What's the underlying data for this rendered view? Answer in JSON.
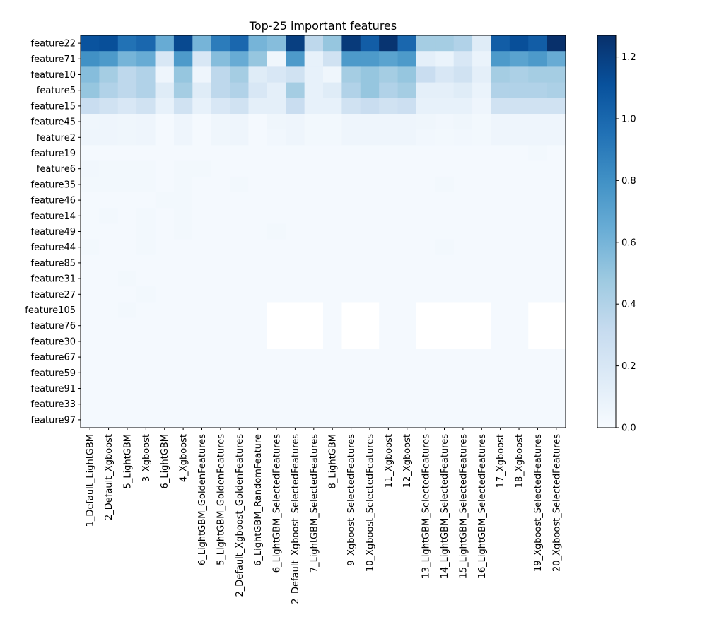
{
  "chart_data": {
    "type": "heatmap",
    "title": "Top-25 important features",
    "xlabel": "",
    "ylabel": "",
    "color_scale": {
      "min": 0.0,
      "max": 1.27,
      "ticks": [
        0.0,
        0.2,
        0.4,
        0.6,
        0.8,
        1.0,
        1.2
      ],
      "tick_labels": [
        "0.0",
        "0.2",
        "0.4",
        "0.6",
        "0.8",
        "1.0",
        "1.2"
      ],
      "colormap": "Blues"
    },
    "rows": [
      "feature22",
      "feature71",
      "feature10",
      "feature5",
      "feature15",
      "feature45",
      "feature2",
      "feature19",
      "feature6",
      "feature35",
      "feature46",
      "feature14",
      "feature49",
      "feature44",
      "feature85",
      "feature31",
      "feature27",
      "feature105",
      "feature76",
      "feature30",
      "feature67",
      "feature59",
      "feature91",
      "feature33",
      "feature97"
    ],
    "columns": [
      "1_Default_LightGBM",
      "2_Default_Xgboost",
      "5_LightGBM",
      "3_Xgboost",
      "6_LightGBM",
      "4_Xgboost",
      "6_LightGBM_GoldenFeatures",
      "5_LightGBM_GoldenFeatures",
      "2_Default_Xgboost_GoldenFeatures",
      "6_LightGBM_RandomFeature",
      "6_LightGBM_SelectedFeatures",
      "2_Default_Xgboost_SelectedFeatures",
      "7_LightGBM_SelectedFeatures",
      "8_LightGBM",
      "9_Xgboost_SelectedFeatures",
      "10_Xgboost_SelectedFeatures",
      "11_Xgboost",
      "12_Xgboost",
      "13_LightGBM_SelectedFeatures",
      "14_LightGBM_SelectedFeatures",
      "15_LightGBM_SelectedFeatures",
      "16_LightGBM_SelectedFeatures",
      "17_Xgboost",
      "18_Xgboost",
      "19_Xgboost_SelectedFeatures",
      "20_Xgboost_SelectedFeatures"
    ],
    "values": [
      [
        1.1,
        1.12,
        0.95,
        1.0,
        0.65,
        1.15,
        0.6,
        0.9,
        1.0,
        0.6,
        0.55,
        1.2,
        0.35,
        0.5,
        1.22,
        1.05,
        1.25,
        1.0,
        0.45,
        0.45,
        0.4,
        0.15,
        1.05,
        1.12,
        1.05,
        1.27
      ],
      [
        0.8,
        0.75,
        0.6,
        0.65,
        0.2,
        0.75,
        0.2,
        0.55,
        0.65,
        0.5,
        0.05,
        0.75,
        0.1,
        0.25,
        0.75,
        0.75,
        0.7,
        0.75,
        0.12,
        0.08,
        0.2,
        0.08,
        0.75,
        0.7,
        0.75,
        0.65
      ],
      [
        0.55,
        0.45,
        0.35,
        0.4,
        0.06,
        0.5,
        0.06,
        0.35,
        0.45,
        0.15,
        0.2,
        0.25,
        0.1,
        0.05,
        0.45,
        0.5,
        0.45,
        0.5,
        0.3,
        0.2,
        0.25,
        0.12,
        0.45,
        0.42,
        0.45,
        0.45
      ],
      [
        0.5,
        0.4,
        0.35,
        0.4,
        0.15,
        0.45,
        0.15,
        0.35,
        0.4,
        0.2,
        0.12,
        0.45,
        0.1,
        0.15,
        0.4,
        0.5,
        0.4,
        0.45,
        0.12,
        0.12,
        0.15,
        0.08,
        0.4,
        0.4,
        0.4,
        0.42
      ],
      [
        0.3,
        0.25,
        0.2,
        0.25,
        0.1,
        0.25,
        0.1,
        0.2,
        0.25,
        0.12,
        0.12,
        0.3,
        0.1,
        0.1,
        0.25,
        0.3,
        0.25,
        0.28,
        0.1,
        0.1,
        0.1,
        0.06,
        0.25,
        0.25,
        0.25,
        0.25
      ],
      [
        0.05,
        0.06,
        0.05,
        0.06,
        0.02,
        0.06,
        0.02,
        0.05,
        0.06,
        0.02,
        0.05,
        0.06,
        0.03,
        0.03,
        0.06,
        0.06,
        0.06,
        0.06,
        0.05,
        0.04,
        0.05,
        0.03,
        0.06,
        0.06,
        0.06,
        0.06
      ],
      [
        0.06,
        0.06,
        0.05,
        0.06,
        0.02,
        0.06,
        0.02,
        0.05,
        0.06,
        0.02,
        0.04,
        0.06,
        0.03,
        0.03,
        0.06,
        0.06,
        0.06,
        0.06,
        0.04,
        0.03,
        0.04,
        0.03,
        0.06,
        0.06,
        0.06,
        0.06
      ],
      [
        0.02,
        0.02,
        0.02,
        0.02,
        0.02,
        0.02,
        0.02,
        0.02,
        0.02,
        0.02,
        0.02,
        0.02,
        0.02,
        0.02,
        0.02,
        0.02,
        0.02,
        0.02,
        0.02,
        0.02,
        0.02,
        0.02,
        0.02,
        0.02,
        0.03,
        0.02
      ],
      [
        0.04,
        0.03,
        0.03,
        0.03,
        0.02,
        0.03,
        0.03,
        0.02,
        0.02,
        0.02,
        0.02,
        0.02,
        0.02,
        0.02,
        0.02,
        0.02,
        0.02,
        0.02,
        0.02,
        0.02,
        0.02,
        0.02,
        0.02,
        0.02,
        0.02,
        0.02
      ],
      [
        0.03,
        0.03,
        0.03,
        0.03,
        0.02,
        0.03,
        0.02,
        0.02,
        0.03,
        0.02,
        0.02,
        0.02,
        0.02,
        0.02,
        0.02,
        0.02,
        0.02,
        0.02,
        0.02,
        0.03,
        0.02,
        0.02,
        0.02,
        0.02,
        0.02,
        0.02
      ],
      [
        0.02,
        0.02,
        0.02,
        0.02,
        0.03,
        0.03,
        0.02,
        0.02,
        0.02,
        0.02,
        0.02,
        0.02,
        0.02,
        0.02,
        0.02,
        0.02,
        0.02,
        0.02,
        0.02,
        0.02,
        0.02,
        0.02,
        0.02,
        0.02,
        0.02,
        0.02
      ],
      [
        0.02,
        0.03,
        0.02,
        0.03,
        0.02,
        0.03,
        0.02,
        0.02,
        0.02,
        0.02,
        0.02,
        0.02,
        0.02,
        0.02,
        0.02,
        0.02,
        0.02,
        0.02,
        0.02,
        0.02,
        0.02,
        0.02,
        0.02,
        0.02,
        0.02,
        0.02
      ],
      [
        0.02,
        0.02,
        0.02,
        0.03,
        0.02,
        0.03,
        0.02,
        0.02,
        0.02,
        0.02,
        0.03,
        0.02,
        0.02,
        0.02,
        0.02,
        0.02,
        0.02,
        0.02,
        0.02,
        0.02,
        0.02,
        0.02,
        0.02,
        0.02,
        0.02,
        0.02
      ],
      [
        0.03,
        0.02,
        0.02,
        0.03,
        0.02,
        0.02,
        0.02,
        0.02,
        0.02,
        0.02,
        0.02,
        0.02,
        0.02,
        0.02,
        0.02,
        0.02,
        0.02,
        0.02,
        0.02,
        0.03,
        0.02,
        0.02,
        0.02,
        0.02,
        0.02,
        0.02
      ],
      [
        0.02,
        0.02,
        0.02,
        0.02,
        0.02,
        0.02,
        0.02,
        0.02,
        0.02,
        0.02,
        0.02,
        0.02,
        0.02,
        0.02,
        0.02,
        0.02,
        0.02,
        0.02,
        0.02,
        0.02,
        0.02,
        0.02,
        0.02,
        0.02,
        0.02,
        0.02
      ],
      [
        0.02,
        0.02,
        0.03,
        0.02,
        0.02,
        0.02,
        0.02,
        0.02,
        0.02,
        0.02,
        0.02,
        0.02,
        0.02,
        0.02,
        0.02,
        0.02,
        0.02,
        0.02,
        0.02,
        0.02,
        0.02,
        0.02,
        0.02,
        0.02,
        0.02,
        0.02
      ],
      [
        0.02,
        0.02,
        0.02,
        0.03,
        0.02,
        0.02,
        0.02,
        0.02,
        0.02,
        0.02,
        0.02,
        0.02,
        0.02,
        0.02,
        0.02,
        0.02,
        0.02,
        0.02,
        0.02,
        0.02,
        0.02,
        0.02,
        0.02,
        0.02,
        0.02,
        0.02
      ],
      [
        0.02,
        0.02,
        0.03,
        0.02,
        0.02,
        0.02,
        0.02,
        0.02,
        0.02,
        0.02,
        0.0,
        0.0,
        0.0,
        0.02,
        0.0,
        0.0,
        0.02,
        0.02,
        0.0,
        0.0,
        0.0,
        0.0,
        0.02,
        0.02,
        0.0,
        0.0
      ],
      [
        0.02,
        0.02,
        0.02,
        0.02,
        0.02,
        0.02,
        0.02,
        0.02,
        0.02,
        0.02,
        0.0,
        0.0,
        0.0,
        0.02,
        0.0,
        0.0,
        0.02,
        0.02,
        0.0,
        0.0,
        0.0,
        0.0,
        0.02,
        0.02,
        0.0,
        0.0
      ],
      [
        0.02,
        0.02,
        0.02,
        0.02,
        0.02,
        0.02,
        0.02,
        0.02,
        0.02,
        0.02,
        0.0,
        0.0,
        0.0,
        0.02,
        0.0,
        0.0,
        0.02,
        0.02,
        0.0,
        0.0,
        0.0,
        0.0,
        0.02,
        0.02,
        0.0,
        0.0
      ],
      [
        0.02,
        0.02,
        0.02,
        0.02,
        0.02,
        0.02,
        0.02,
        0.02,
        0.02,
        0.02,
        0.02,
        0.02,
        0.02,
        0.02,
        0.02,
        0.02,
        0.02,
        0.02,
        0.02,
        0.02,
        0.02,
        0.02,
        0.02,
        0.02,
        0.02,
        0.02
      ],
      [
        0.02,
        0.02,
        0.02,
        0.02,
        0.02,
        0.02,
        0.02,
        0.02,
        0.02,
        0.02,
        0.02,
        0.02,
        0.02,
        0.02,
        0.02,
        0.02,
        0.02,
        0.02,
        0.02,
        0.02,
        0.02,
        0.02,
        0.02,
        0.02,
        0.02,
        0.02
      ],
      [
        0.02,
        0.02,
        0.02,
        0.02,
        0.02,
        0.02,
        0.02,
        0.02,
        0.02,
        0.02,
        0.02,
        0.02,
        0.02,
        0.02,
        0.02,
        0.02,
        0.02,
        0.02,
        0.02,
        0.02,
        0.02,
        0.02,
        0.02,
        0.02,
        0.02,
        0.02
      ],
      [
        0.02,
        0.02,
        0.02,
        0.02,
        0.02,
        0.02,
        0.02,
        0.02,
        0.02,
        0.02,
        0.02,
        0.02,
        0.02,
        0.02,
        0.02,
        0.02,
        0.02,
        0.02,
        0.02,
        0.02,
        0.02,
        0.02,
        0.02,
        0.02,
        0.02,
        0.02
      ],
      [
        0.02,
        0.02,
        0.02,
        0.02,
        0.02,
        0.02,
        0.02,
        0.02,
        0.02,
        0.02,
        0.02,
        0.02,
        0.02,
        0.02,
        0.02,
        0.02,
        0.02,
        0.02,
        0.02,
        0.02,
        0.02,
        0.02,
        0.02,
        0.02,
        0.02,
        0.02
      ]
    ],
    "grid": false,
    "legend": "colorbar-right"
  }
}
